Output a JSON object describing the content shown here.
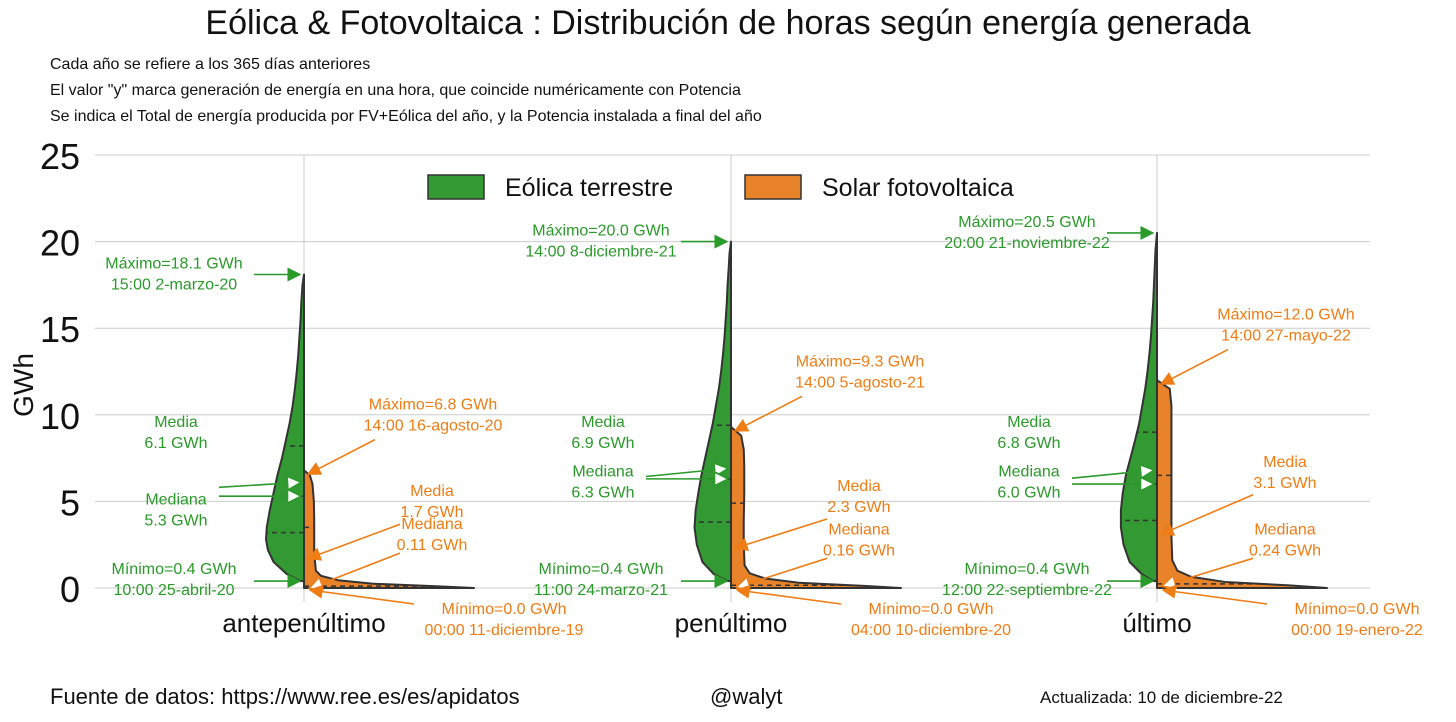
{
  "title": "Eólica & Fotovoltaica : Distribución de horas según energía generada",
  "subtitles": [
    "Cada año se refiere a los 365 días anteriores",
    "El valor \"y\" marca generación de energía en una hora, que coincide numéricamente con Potencia",
    "Se indica el Total de energía producida por FV+Eólica del año, y la Potencia instalada a final del año"
  ],
  "footer": {
    "source": "Fuente de datos: https://www.ree.es/es/apidatos",
    "author": "@walyt",
    "updated": "Actualizada: 10 de diciembre-22"
  },
  "colors": {
    "wind": "#339933",
    "solar": "#e8832a",
    "wind_text": "#2a9a2a",
    "solar_text": "#f07c14"
  },
  "chart_data": {
    "type": "violin",
    "ylabel": "GWh",
    "ylim": [
      0,
      25
    ],
    "yticks": [
      0,
      5,
      10,
      15,
      20,
      25
    ],
    "grid": true,
    "legend": {
      "position": "top-center",
      "entries": [
        "Eólica terrestre",
        "Solar fotovoltaica"
      ]
    },
    "groups": [
      {
        "category": "antepenúltimo",
        "wind": {
          "max": 18.1,
          "mean": 6.1,
          "median": 5.3,
          "min": 0.4,
          "q1": 3.2,
          "q3": 8.2,
          "profile": [
            [
              0.4,
              0.1
            ],
            [
              0.8,
              0.45
            ],
            [
              1.5,
              0.8
            ],
            [
              2.2,
              0.95
            ],
            [
              2.8,
              1.0
            ],
            [
              3.5,
              0.98
            ],
            [
              4.5,
              0.9
            ],
            [
              5.5,
              0.8
            ],
            [
              6.5,
              0.7
            ],
            [
              7.5,
              0.58
            ],
            [
              8.5,
              0.48
            ],
            [
              9.5,
              0.38
            ],
            [
              10.5,
              0.3
            ],
            [
              11.5,
              0.24
            ],
            [
              12.5,
              0.19
            ],
            [
              13.5,
              0.15
            ],
            [
              14.5,
              0.12
            ],
            [
              15.5,
              0.09
            ],
            [
              16.5,
              0.07
            ],
            [
              17.5,
              0.04
            ],
            [
              18.1,
              0.0
            ]
          ],
          "labels": {
            "max": [
              "Máximo=18.1 GWh",
              "15:00 2-marzo-20"
            ],
            "mean": [
              "Media",
              "6.1 GWh"
            ],
            "median": [
              "Mediana",
              "5.3 GWh"
            ],
            "min": [
              "Mínimo=0.4 GWh",
              "10:00 25-abril-20"
            ]
          }
        },
        "solar": {
          "max": 6.8,
          "mean": 1.7,
          "median": 0.11,
          "min": 0.0,
          "q3": 3.5,
          "profile": [
            [
              0,
              1.0
            ],
            [
              0.1,
              0.78
            ],
            [
              0.25,
              0.4
            ],
            [
              0.45,
              0.2
            ],
            [
              0.7,
              0.1
            ],
            [
              1.0,
              0.07
            ],
            [
              2.0,
              0.06
            ],
            [
              3.0,
              0.06
            ],
            [
              4.0,
              0.06
            ],
            [
              5.0,
              0.058
            ],
            [
              6.0,
              0.05
            ],
            [
              6.5,
              0.035
            ],
            [
              6.8,
              0.0
            ]
          ],
          "labels": {
            "max": [
              "Máximo=6.8 GWh",
              "14:00 16-agosto-20"
            ],
            "mean": [
              "Media",
              "1.7 GWh"
            ],
            "median": [
              "Mediana",
              "0.11 GWh"
            ],
            "min": [
              "Mínimo=0.0 GWh",
              "00:00 11-diciembre-19"
            ]
          }
        }
      },
      {
        "category": "penúltimo",
        "wind": {
          "max": 20.0,
          "mean": 6.9,
          "median": 6.3,
          "min": 0.4,
          "q1": 3.8,
          "q3": 9.4,
          "profile": [
            [
              0.4,
              0.1
            ],
            [
              0.8,
              0.45
            ],
            [
              1.5,
              0.75
            ],
            [
              2.5,
              0.9
            ],
            [
              3.5,
              0.96
            ],
            [
              4.5,
              0.93
            ],
            [
              5.5,
              0.86
            ],
            [
              6.5,
              0.78
            ],
            [
              7.5,
              0.68
            ],
            [
              8.5,
              0.58
            ],
            [
              9.5,
              0.48
            ],
            [
              10.5,
              0.4
            ],
            [
              11.5,
              0.32
            ],
            [
              12.5,
              0.26
            ],
            [
              13.5,
              0.21
            ],
            [
              14.5,
              0.17
            ],
            [
              15.5,
              0.14
            ],
            [
              16.5,
              0.11
            ],
            [
              17.5,
              0.09
            ],
            [
              18.5,
              0.06
            ],
            [
              19.3,
              0.04
            ],
            [
              20.0,
              0.0
            ]
          ],
          "labels": {
            "max": [
              "Máximo=20.0 GWh",
              "14:00 8-diciembre-21"
            ],
            "mean": [
              "Media",
              "6.9 GWh"
            ],
            "median": [
              "Mediana",
              "6.3 GWh"
            ],
            "min": [
              "Mínimo=0.4 GWh",
              "11:00 24-marzo-21"
            ]
          }
        },
        "solar": {
          "max": 9.3,
          "mean": 2.3,
          "median": 0.16,
          "min": 0.0,
          "q3": 4.9,
          "profile": [
            [
              0,
              1.0
            ],
            [
              0.12,
              0.78
            ],
            [
              0.3,
              0.4
            ],
            [
              0.55,
              0.2
            ],
            [
              0.85,
              0.11
            ],
            [
              1.3,
              0.08
            ],
            [
              2.5,
              0.075
            ],
            [
              4.0,
              0.075
            ],
            [
              5.5,
              0.078
            ],
            [
              7.0,
              0.078
            ],
            [
              8.0,
              0.075
            ],
            [
              8.8,
              0.06
            ],
            [
              9.3,
              0.0
            ]
          ],
          "labels": {
            "max": [
              "Máximo=9.3 GWh",
              "14:00 5-agosto-21"
            ],
            "mean": [
              "Media",
              "2.3 GWh"
            ],
            "median": [
              "Mediana",
              "0.16 GWh"
            ],
            "min": [
              "Mínimo=0.0 GWh",
              "04:00 10-diciembre-20"
            ]
          }
        }
      },
      {
        "category": "último",
        "wind": {
          "max": 20.5,
          "mean": 6.8,
          "median": 6.0,
          "min": 0.4,
          "q1": 3.9,
          "q3": 9.0,
          "profile": [
            [
              0.4,
              0.1
            ],
            [
              0.8,
              0.4
            ],
            [
              1.5,
              0.72
            ],
            [
              2.5,
              0.88
            ],
            [
              3.5,
              0.95
            ],
            [
              4.5,
              0.95
            ],
            [
              5.5,
              0.9
            ],
            [
              6.5,
              0.82
            ],
            [
              7.5,
              0.7
            ],
            [
              8.5,
              0.58
            ],
            [
              9.5,
              0.47
            ],
            [
              10.5,
              0.39
            ],
            [
              11.5,
              0.31
            ],
            [
              12.5,
              0.25
            ],
            [
              13.5,
              0.2
            ],
            [
              14.5,
              0.16
            ],
            [
              15.5,
              0.13
            ],
            [
              16.5,
              0.1
            ],
            [
              17.5,
              0.08
            ],
            [
              18.5,
              0.06
            ],
            [
              19.5,
              0.04
            ],
            [
              20.5,
              0.0
            ]
          ],
          "labels": {
            "max": [
              "Máximo=20.5 GWh",
              "20:00 21-noviembre-22"
            ],
            "mean": [
              "Media",
              "6.8 GWh"
            ],
            "median": [
              "Mediana",
              "6.0 GWh"
            ],
            "min": [
              "Mínimo=0.4 GWh",
              "12:00 22-septiembre-22"
            ]
          }
        },
        "solar": {
          "max": 12.0,
          "mean": 3.1,
          "median": 0.24,
          "min": 0.0,
          "q3": 6.5,
          "profile": [
            [
              0,
              1.0
            ],
            [
              0.15,
              0.78
            ],
            [
              0.35,
              0.4
            ],
            [
              0.65,
              0.2
            ],
            [
              1.0,
              0.12
            ],
            [
              1.6,
              0.09
            ],
            [
              3.0,
              0.085
            ],
            [
              5.0,
              0.085
            ],
            [
              7.0,
              0.085
            ],
            [
              9.0,
              0.085
            ],
            [
              10.5,
              0.085
            ],
            [
              11.5,
              0.075
            ],
            [
              12.0,
              0.0
            ]
          ],
          "labels": {
            "max": [
              "Máximo=12.0 GWh",
              "14:00 27-mayo-22"
            ],
            "mean": [
              "Media",
              "3.1 GWh"
            ],
            "median": [
              "Mediana",
              "0.24 GWh"
            ],
            "min": [
              "Mínimo=0.0 GWh",
              "00:00 19-enero-22"
            ]
          }
        }
      }
    ]
  }
}
